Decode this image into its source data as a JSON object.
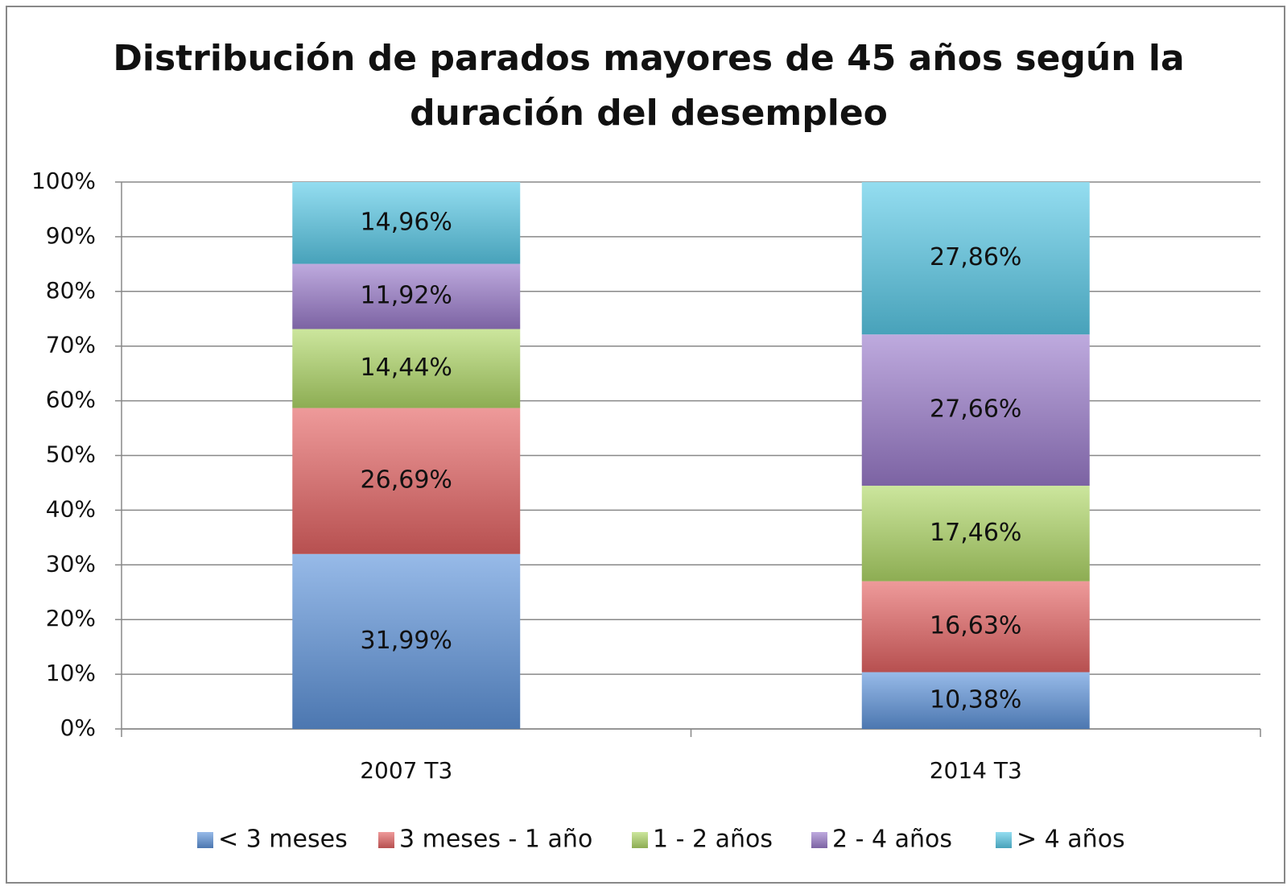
{
  "chart_data": {
    "type": "stacked_bar",
    "title": [
      "Distribución de parados  mayores de 45 años según la",
      "duración del desempleo"
    ],
    "categories": [
      "2007 T3",
      "2014 T3"
    ],
    "series": [
      {
        "name": "< 3 meses",
        "color": "#5f95dc",
        "values": [
          31.99,
          10.38
        ],
        "value_labels": [
          "31,99%",
          "10,38%"
        ]
      },
      {
        "name": "3 meses - 1 año",
        "color": "#e56464",
        "values": [
          26.69,
          16.63
        ],
        "value_labels": [
          "26,69%",
          "16,63%"
        ]
      },
      {
        "name": "1 - 2 años",
        "color": "#b0d868",
        "values": [
          14.44,
          17.46
        ],
        "value_labels": [
          "14,44%",
          "17,46%"
        ]
      },
      {
        "name": "2 - 4 años",
        "color": "#9b7ccc",
        "values": [
          11.92,
          27.66
        ],
        "value_labels": [
          "11,92%",
          "27,66%"
        ]
      },
      {
        "name": "> 4 años",
        "color": "#5acbe8",
        "values": [
          14.96,
          27.86
        ],
        "value_labels": [
          "14,96%",
          "27,86%"
        ]
      }
    ],
    "ylim": [
      0,
      100
    ],
    "yticks": [
      {
        "value": 0,
        "label": "0%"
      },
      {
        "value": 10,
        "label": "10%"
      },
      {
        "value": 20,
        "label": "20%"
      },
      {
        "value": 30,
        "label": "30%"
      },
      {
        "value": 40,
        "label": "40%"
      },
      {
        "value": 50,
        "label": "50%"
      },
      {
        "value": 60,
        "label": "60%"
      },
      {
        "value": 70,
        "label": "70%"
      },
      {
        "value": 80,
        "label": "80%"
      },
      {
        "value": 90,
        "label": "90%"
      },
      {
        "value": 100,
        "label": "100%"
      }
    ],
    "grid": true,
    "legend": "bottom"
  }
}
